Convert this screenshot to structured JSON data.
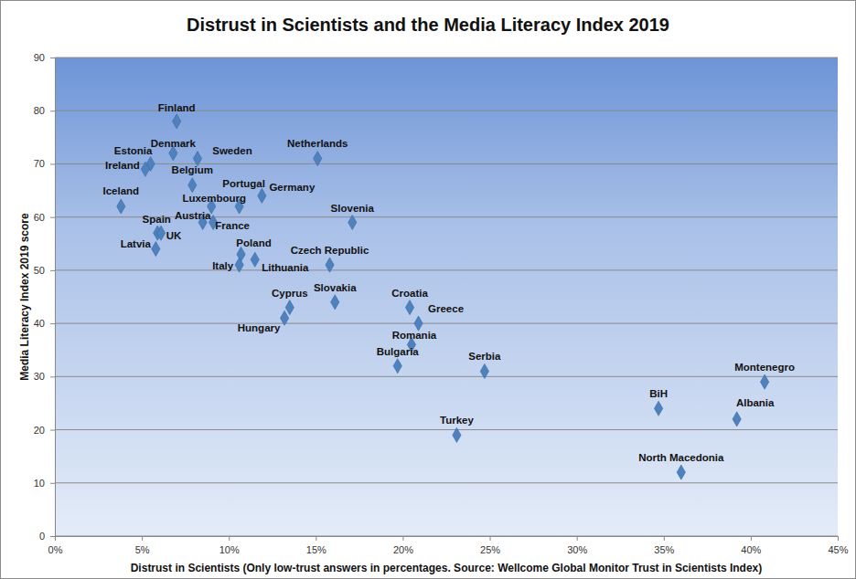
{
  "chart_data": {
    "type": "scatter",
    "title": "Distrust in Scientists and the Media Literacy Index 2019",
    "x_label": "Distrust in Scientists (Only low-trust answers in percentages. Source: Wellcome Global Monitor Trust in Scientists Index)",
    "y_label": "Media Literacy Index 2019 score",
    "labels": [
      "Finland",
      "Denmark",
      "Estonia",
      "Ireland",
      "Sweden",
      "Belgium",
      "Netherlands",
      "Portugal",
      "Germany",
      "Luxembourg",
      "Iceland",
      "Austria",
      "France",
      "Slovenia",
      "Spain",
      "UK",
      "Latvia",
      "Poland",
      "Italy",
      "Lithuania",
      "Czech Republic",
      "Slovakia",
      "Cyprus",
      "Hungary",
      "Croatia",
      "Greece",
      "Romania",
      "Bulgaria",
      "Serbia",
      "Turkey",
      "BiH",
      "Montenegro",
      "Albania",
      "North Macedonia"
    ],
    "x": [
      7.0,
      6.8,
      5.5,
      5.2,
      8.2,
      7.9,
      15.1,
      10.6,
      11.9,
      9.0,
      3.8,
      8.5,
      9.1,
      17.1,
      5.9,
      6.1,
      5.8,
      10.7,
      10.6,
      11.5,
      15.8,
      16.1,
      13.5,
      13.2,
      20.4,
      20.9,
      20.5,
      19.7,
      24.7,
      23.1,
      34.7,
      40.8,
      39.2,
      36.0
    ],
    "values": [
      78,
      72,
      70,
      69,
      71,
      66,
      71,
      62,
      64,
      62,
      62,
      59,
      59,
      59,
      57,
      57,
      54,
      53,
      51,
      52,
      51,
      44,
      43,
      41,
      43,
      40,
      36,
      32,
      31,
      19,
      24,
      29,
      22,
      12
    ],
    "color": "#4f81bd",
    "marker": "diamond",
    "grid": true,
    "xlim": [
      0,
      45
    ],
    "xticks": [
      {
        "value": 0,
        "label": "0%"
      },
      {
        "value": 5,
        "label": "5%"
      },
      {
        "value": 10,
        "label": "10%"
      },
      {
        "value": 15,
        "label": "15%"
      },
      {
        "value": 20,
        "label": "20%"
      },
      {
        "value": 25,
        "label": "25%"
      },
      {
        "value": 30,
        "label": "30%"
      },
      {
        "value": 35,
        "label": "35%"
      },
      {
        "value": 40,
        "label": "40%"
      },
      {
        "value": 45,
        "label": "45%"
      }
    ],
    "ylim": [
      0,
      90
    ],
    "yticks": [
      0,
      10,
      20,
      30,
      40,
      50,
      60,
      70,
      80,
      90
    ]
  }
}
